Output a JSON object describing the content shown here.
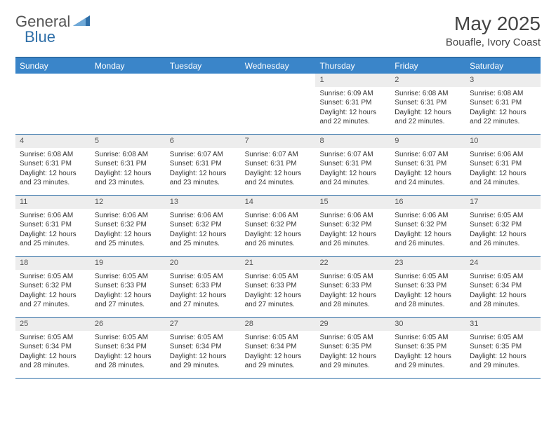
{
  "logo": {
    "text1": "General",
    "text2": "Blue",
    "accent_color": "#2f6fa8"
  },
  "title": "May 2025",
  "location": "Bouafle, Ivory Coast",
  "colors": {
    "header_bg": "#3a85c9",
    "border": "#2f6fa8",
    "daynum_bg": "#ededed"
  },
  "weekdays": [
    "Sunday",
    "Monday",
    "Tuesday",
    "Wednesday",
    "Thursday",
    "Friday",
    "Saturday"
  ],
  "weeks": [
    [
      {
        "n": "",
        "lines": []
      },
      {
        "n": "",
        "lines": []
      },
      {
        "n": "",
        "lines": []
      },
      {
        "n": "",
        "lines": []
      },
      {
        "n": "1",
        "lines": [
          "Sunrise: 6:09 AM",
          "Sunset: 6:31 PM",
          "Daylight: 12 hours and 22 minutes."
        ]
      },
      {
        "n": "2",
        "lines": [
          "Sunrise: 6:08 AM",
          "Sunset: 6:31 PM",
          "Daylight: 12 hours and 22 minutes."
        ]
      },
      {
        "n": "3",
        "lines": [
          "Sunrise: 6:08 AM",
          "Sunset: 6:31 PM",
          "Daylight: 12 hours and 22 minutes."
        ]
      }
    ],
    [
      {
        "n": "4",
        "lines": [
          "Sunrise: 6:08 AM",
          "Sunset: 6:31 PM",
          "Daylight: 12 hours and 23 minutes."
        ]
      },
      {
        "n": "5",
        "lines": [
          "Sunrise: 6:08 AM",
          "Sunset: 6:31 PM",
          "Daylight: 12 hours and 23 minutes."
        ]
      },
      {
        "n": "6",
        "lines": [
          "Sunrise: 6:07 AM",
          "Sunset: 6:31 PM",
          "Daylight: 12 hours and 23 minutes."
        ]
      },
      {
        "n": "7",
        "lines": [
          "Sunrise: 6:07 AM",
          "Sunset: 6:31 PM",
          "Daylight: 12 hours and 24 minutes."
        ]
      },
      {
        "n": "8",
        "lines": [
          "Sunrise: 6:07 AM",
          "Sunset: 6:31 PM",
          "Daylight: 12 hours and 24 minutes."
        ]
      },
      {
        "n": "9",
        "lines": [
          "Sunrise: 6:07 AM",
          "Sunset: 6:31 PM",
          "Daylight: 12 hours and 24 minutes."
        ]
      },
      {
        "n": "10",
        "lines": [
          "Sunrise: 6:06 AM",
          "Sunset: 6:31 PM",
          "Daylight: 12 hours and 24 minutes."
        ]
      }
    ],
    [
      {
        "n": "11",
        "lines": [
          "Sunrise: 6:06 AM",
          "Sunset: 6:31 PM",
          "Daylight: 12 hours and 25 minutes."
        ]
      },
      {
        "n": "12",
        "lines": [
          "Sunrise: 6:06 AM",
          "Sunset: 6:32 PM",
          "Daylight: 12 hours and 25 minutes."
        ]
      },
      {
        "n": "13",
        "lines": [
          "Sunrise: 6:06 AM",
          "Sunset: 6:32 PM",
          "Daylight: 12 hours and 25 minutes."
        ]
      },
      {
        "n": "14",
        "lines": [
          "Sunrise: 6:06 AM",
          "Sunset: 6:32 PM",
          "Daylight: 12 hours and 26 minutes."
        ]
      },
      {
        "n": "15",
        "lines": [
          "Sunrise: 6:06 AM",
          "Sunset: 6:32 PM",
          "Daylight: 12 hours and 26 minutes."
        ]
      },
      {
        "n": "16",
        "lines": [
          "Sunrise: 6:06 AM",
          "Sunset: 6:32 PM",
          "Daylight: 12 hours and 26 minutes."
        ]
      },
      {
        "n": "17",
        "lines": [
          "Sunrise: 6:05 AM",
          "Sunset: 6:32 PM",
          "Daylight: 12 hours and 26 minutes."
        ]
      }
    ],
    [
      {
        "n": "18",
        "lines": [
          "Sunrise: 6:05 AM",
          "Sunset: 6:32 PM",
          "Daylight: 12 hours and 27 minutes."
        ]
      },
      {
        "n": "19",
        "lines": [
          "Sunrise: 6:05 AM",
          "Sunset: 6:33 PM",
          "Daylight: 12 hours and 27 minutes."
        ]
      },
      {
        "n": "20",
        "lines": [
          "Sunrise: 6:05 AM",
          "Sunset: 6:33 PM",
          "Daylight: 12 hours and 27 minutes."
        ]
      },
      {
        "n": "21",
        "lines": [
          "Sunrise: 6:05 AM",
          "Sunset: 6:33 PM",
          "Daylight: 12 hours and 27 minutes."
        ]
      },
      {
        "n": "22",
        "lines": [
          "Sunrise: 6:05 AM",
          "Sunset: 6:33 PM",
          "Daylight: 12 hours and 28 minutes."
        ]
      },
      {
        "n": "23",
        "lines": [
          "Sunrise: 6:05 AM",
          "Sunset: 6:33 PM",
          "Daylight: 12 hours and 28 minutes."
        ]
      },
      {
        "n": "24",
        "lines": [
          "Sunrise: 6:05 AM",
          "Sunset: 6:34 PM",
          "Daylight: 12 hours and 28 minutes."
        ]
      }
    ],
    [
      {
        "n": "25",
        "lines": [
          "Sunrise: 6:05 AM",
          "Sunset: 6:34 PM",
          "Daylight: 12 hours and 28 minutes."
        ]
      },
      {
        "n": "26",
        "lines": [
          "Sunrise: 6:05 AM",
          "Sunset: 6:34 PM",
          "Daylight: 12 hours and 28 minutes."
        ]
      },
      {
        "n": "27",
        "lines": [
          "Sunrise: 6:05 AM",
          "Sunset: 6:34 PM",
          "Daylight: 12 hours and 29 minutes."
        ]
      },
      {
        "n": "28",
        "lines": [
          "Sunrise: 6:05 AM",
          "Sunset: 6:34 PM",
          "Daylight: 12 hours and 29 minutes."
        ]
      },
      {
        "n": "29",
        "lines": [
          "Sunrise: 6:05 AM",
          "Sunset: 6:35 PM",
          "Daylight: 12 hours and 29 minutes."
        ]
      },
      {
        "n": "30",
        "lines": [
          "Sunrise: 6:05 AM",
          "Sunset: 6:35 PM",
          "Daylight: 12 hours and 29 minutes."
        ]
      },
      {
        "n": "31",
        "lines": [
          "Sunrise: 6:05 AM",
          "Sunset: 6:35 PM",
          "Daylight: 12 hours and 29 minutes."
        ]
      }
    ]
  ]
}
